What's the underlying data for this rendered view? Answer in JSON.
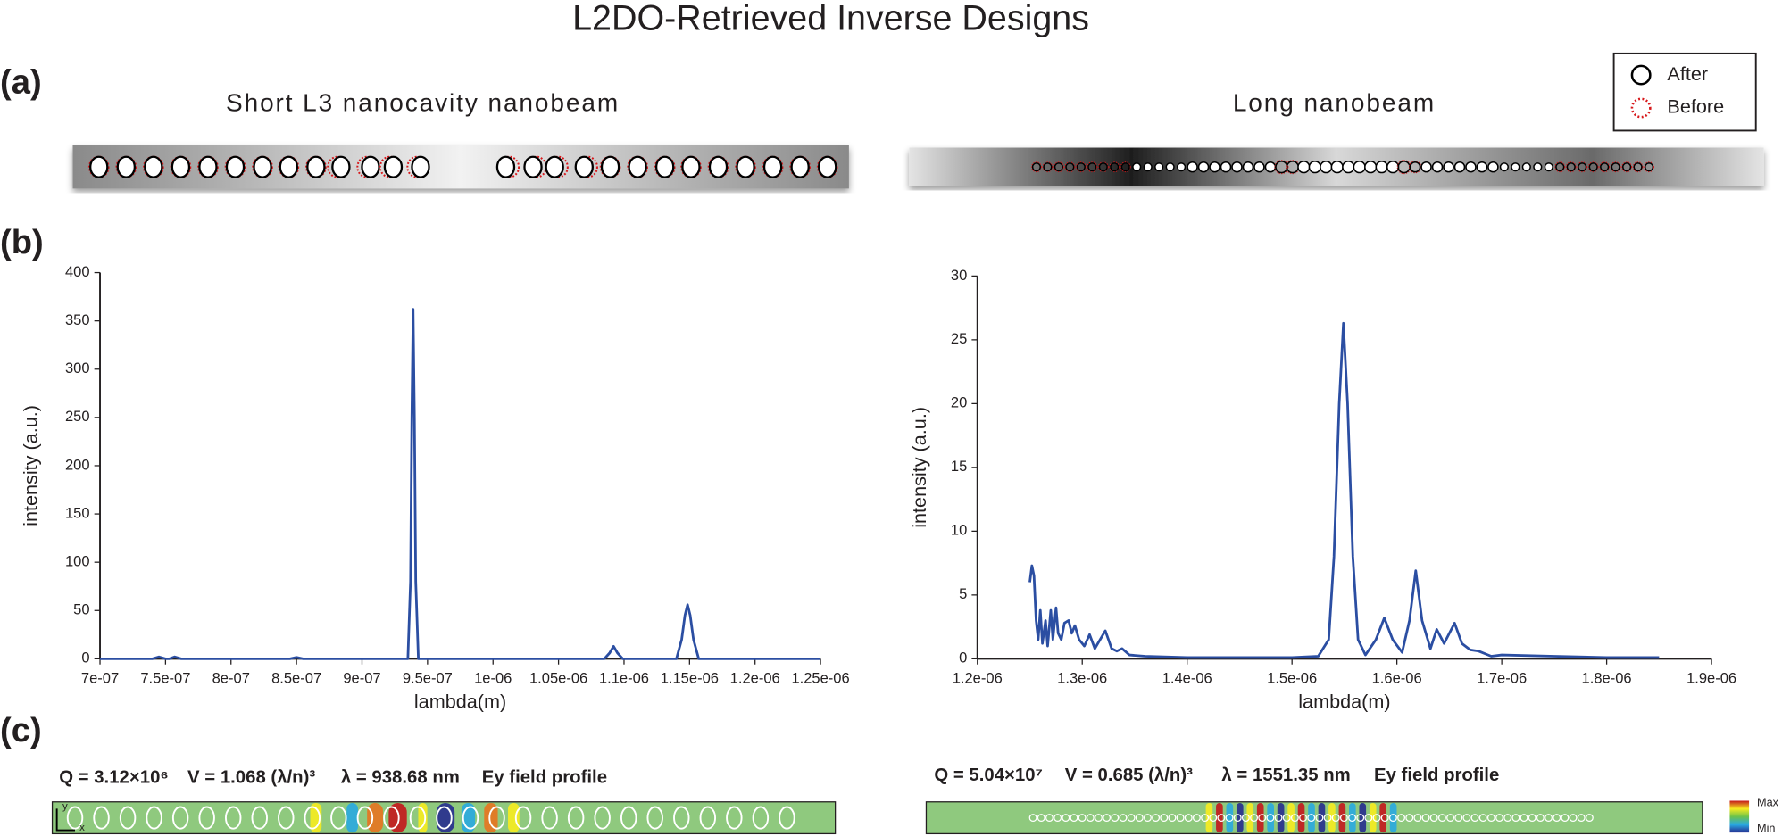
{
  "title": "L2DO-Retrieved Inverse Designs",
  "panels": [
    "(a)",
    "(b)",
    "(c)"
  ],
  "designs": [
    {
      "title": "Short L3 nanocavity nanobeam"
    },
    {
      "title": "Long nanobeam"
    }
  ],
  "legend": [
    "After",
    "Before"
  ],
  "field_profiles": [
    {
      "q": "Q = 3.12×10⁶",
      "v": "V = 1.068 (λ/n)³",
      "wavelength": "λ = 938.68 nm",
      "label": "Ey field profile"
    },
    {
      "q": "Q = 5.04×10⁷",
      "v": "V = 0.685 (λ/n)³",
      "wavelength": "λ = 1551.35 nm",
      "label": "Ey field profile"
    }
  ],
  "axis_marks": [
    "y",
    "x"
  ],
  "colorbar": [
    "Max",
    "Min"
  ],
  "chart_data": [
    {
      "type": "line",
      "xlabel": "lambda(m)",
      "ylabel": "intensity (a.u.)",
      "color": "#2b4ea2",
      "x": [
        7e-07,
        7.4e-07,
        7.45e-07,
        7.5e-07,
        7.53e-07,
        7.57e-07,
        7.62e-07,
        8.45e-07,
        8.5e-07,
        8.55e-07,
        9.35e-07,
        9.37e-07,
        9.38e-07,
        9.39e-07,
        9.4e-07,
        9.41e-07,
        9.43e-07,
        1.085e-06,
        1.089e-06,
        1.092e-06,
        1.095e-06,
        1.099e-06,
        1.14e-06,
        1.144e-06,
        1.1465e-06,
        1.1485e-06,
        1.1505e-06,
        1.153e-06,
        1.157e-06,
        1.25e-06
      ],
      "values": [
        0,
        0,
        2,
        0,
        0,
        2,
        0,
        0,
        1.5,
        0,
        0,
        80,
        250,
        362,
        250,
        80,
        0,
        0,
        6,
        13,
        6,
        0,
        0,
        20,
        45,
        56,
        45,
        20,
        0,
        0
      ],
      "xlim": [
        7e-07,
        1.25e-06
      ],
      "xticks": [
        {
          "value": 7e-07,
          "label": "7e-07"
        },
        {
          "value": 7.5e-07,
          "label": "7.5e-07"
        },
        {
          "value": 8e-07,
          "label": "8e-07"
        },
        {
          "value": 8.5e-07,
          "label": "8.5e-07"
        },
        {
          "value": 9e-07,
          "label": "9e-07"
        },
        {
          "value": 9.5e-07,
          "label": "9.5e-07"
        },
        {
          "value": 1e-06,
          "label": "1e-06"
        },
        {
          "value": 1.05e-06,
          "label": "1.05e-06"
        },
        {
          "value": 1.1e-06,
          "label": "1.1e-06"
        },
        {
          "value": 1.15e-06,
          "label": "1.15e-06"
        },
        {
          "value": 1.2e-06,
          "label": "1.2e-06"
        },
        {
          "value": 1.25e-06,
          "label": "1.25e-06"
        }
      ],
      "ylim": [
        0,
        400
      ],
      "yticks": [
        0,
        50,
        100,
        150,
        200,
        250,
        300,
        350,
        400
      ]
    },
    {
      "type": "line",
      "xlabel": "lambda(m)",
      "ylabel": "intensity (a.u.)",
      "color": "#2b4ea2",
      "x": [
        1.25e-06,
        1.252e-06,
        1.254e-06,
        1.256e-06,
        1.258e-06,
        1.26e-06,
        1.262e-06,
        1.265e-06,
        1.267e-06,
        1.27e-06,
        1.272e-06,
        1.275e-06,
        1.277e-06,
        1.28e-06,
        1.283e-06,
        1.287e-06,
        1.29e-06,
        1.293e-06,
        1.297e-06,
        1.302e-06,
        1.307e-06,
        1.312e-06,
        1.317e-06,
        1.322e-06,
        1.328e-06,
        1.333e-06,
        1.338e-06,
        1.345e-06,
        1.36e-06,
        1.4e-06,
        1.45e-06,
        1.5e-06,
        1.525e-06,
        1.535e-06,
        1.54e-06,
        1.545e-06,
        1.549e-06,
        1.553e-06,
        1.558e-06,
        1.563e-06,
        1.57e-06,
        1.58e-06,
        1.588e-06,
        1.596e-06,
        1.605e-06,
        1.612e-06,
        1.618e-06,
        1.624e-06,
        1.632e-06,
        1.638e-06,
        1.645e-06,
        1.655e-06,
        1.662e-06,
        1.67e-06,
        1.678e-06,
        1.69e-06,
        1.7e-06,
        1.75e-06,
        1.8e-06,
        1.85e-06
      ],
      "values": [
        6.0,
        7.3,
        6.5,
        3.0,
        1.5,
        3.8,
        1.2,
        3.0,
        1.0,
        3.8,
        1.5,
        4.0,
        2.0,
        1.5,
        2.8,
        3.0,
        2.0,
        2.6,
        1.5,
        1.0,
        1.9,
        0.8,
        1.5,
        2.2,
        0.8,
        0.6,
        0.8,
        0.3,
        0.2,
        0.1,
        0.1,
        0.1,
        0.2,
        1.5,
        8,
        20,
        26.3,
        20,
        8,
        1.5,
        0.3,
        1.5,
        3.2,
        1.5,
        0.5,
        3,
        6.9,
        3,
        0.8,
        2.3,
        1.2,
        2.8,
        1.2,
        0.7,
        0.6,
        0.2,
        0.3,
        0.2,
        0.1,
        0.1
      ],
      "xlim": [
        1.2e-06,
        1.9e-06
      ],
      "xticks": [
        {
          "value": 1.2e-06,
          "label": "1.2e-06"
        },
        {
          "value": 1.3e-06,
          "label": "1.3e-06"
        },
        {
          "value": 1.4e-06,
          "label": "1.4e-06"
        },
        {
          "value": 1.5e-06,
          "label": "1.5e-06"
        },
        {
          "value": 1.6e-06,
          "label": "1.6e-06"
        },
        {
          "value": 1.7e-06,
          "label": "1.7e-06"
        },
        {
          "value": 1.8e-06,
          "label": "1.8e-06"
        },
        {
          "value": 1.9e-06,
          "label": "1.9e-06"
        }
      ],
      "ylim": [
        0,
        30
      ],
      "yticks": [
        0,
        5,
        10,
        15,
        20,
        25,
        30
      ]
    }
  ]
}
